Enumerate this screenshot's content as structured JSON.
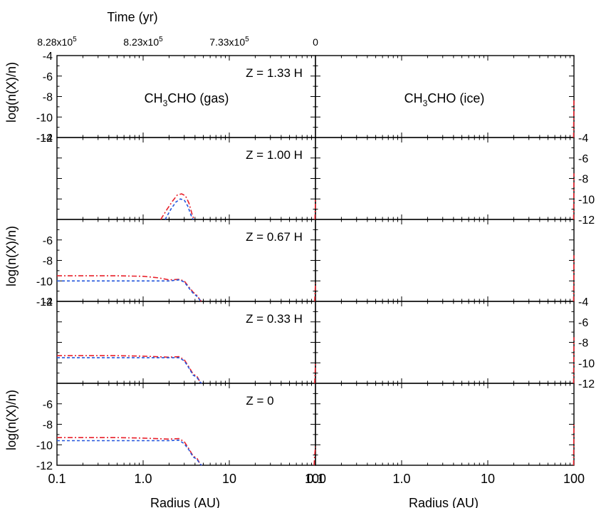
{
  "figure": {
    "time_axis_label": "Time (yr)",
    "time_ticks": [
      {
        "x": 0.1,
        "base": "8.28x10",
        "exp": "5"
      },
      {
        "x": 1.0,
        "base": "8.23x10",
        "exp": "5"
      },
      {
        "x": 10,
        "base": "7.33x10",
        "exp": "5"
      },
      {
        "x": 100,
        "base": "0",
        "exp": ""
      }
    ],
    "ylabel": "log(n(X)/n)",
    "xlabel": "Radius (AU)",
    "species_gas": {
      "pre": "CH",
      "sub": "3",
      "post": "CHO (gas)"
    },
    "species_ice": {
      "pre": "CH",
      "sub": "3",
      "post": "CHO (ice)"
    },
    "series_colors": {
      "red_dashdot": "#e8202a",
      "blue_dashed": "#2255dd"
    }
  },
  "chart_data": {
    "type": "line",
    "xscale": "log",
    "xlim": [
      0.1,
      100
    ],
    "ylim": [
      -12,
      -4
    ],
    "xtick_labels": [
      "0.1",
      "1.0",
      "10",
      "100"
    ],
    "ytick_labels": [
      "-4",
      "-6",
      "-8",
      "-10",
      "-12"
    ],
    "grid": false,
    "panels": [
      {
        "column": "gas",
        "label": "Z = 1.33 H",
        "series": [
          {
            "style": "red-dashdot",
            "points": []
          },
          {
            "style": "blue-dashed",
            "points": []
          }
        ]
      },
      {
        "column": "ice",
        "label": "",
        "series": [
          {
            "style": "red-dashdot",
            "points": [
              [
                99.0,
                -12
              ],
              [
                99.5,
                -10
              ],
              [
                100,
                -8.2
              ]
            ]
          },
          {
            "style": "blue-dashed",
            "points": []
          }
        ]
      },
      {
        "column": "gas",
        "label": "Z = 1.00 H",
        "series": [
          {
            "style": "red-dashdot",
            "points": [
              [
                1.6,
                -12
              ],
              [
                1.9,
                -11
              ],
              [
                2.2,
                -10.2
              ],
              [
                2.5,
                -9.6
              ],
              [
                2.8,
                -9.5
              ],
              [
                3.1,
                -9.7
              ],
              [
                3.4,
                -10.4
              ],
              [
                3.7,
                -11.5
              ],
              [
                3.9,
                -12
              ]
            ]
          },
          {
            "style": "blue-dashed",
            "points": [
              [
                1.8,
                -12
              ],
              [
                2.1,
                -11
              ],
              [
                2.4,
                -10.3
              ],
              [
                2.7,
                -10.0
              ],
              [
                3.0,
                -10.1
              ],
              [
                3.3,
                -10.7
              ],
              [
                3.6,
                -11.6
              ],
              [
                3.8,
                -12
              ]
            ]
          },
          {
            "style": "red-dashdot",
            "points": [
              [
                98.5,
                -12
              ],
              [
                99.5,
                -11
              ],
              [
                100,
                -10
              ]
            ]
          }
        ]
      },
      {
        "column": "ice",
        "label": "",
        "series": [
          {
            "style": "red-dashdot",
            "points": [
              [
                99.0,
                -12
              ],
              [
                99.5,
                -10
              ],
              [
                100,
                -7.5
              ]
            ]
          },
          {
            "style": "blue-dashed",
            "points": []
          }
        ]
      },
      {
        "column": "gas",
        "label": "Z = 0.67 H",
        "series": [
          {
            "style": "red-dashdot",
            "points": [
              [
                0.1,
                -9.5
              ],
              [
                0.5,
                -9.5
              ],
              [
                1.0,
                -9.55
              ],
              [
                1.5,
                -9.7
              ],
              [
                2.0,
                -9.9
              ],
              [
                2.6,
                -9.85
              ],
              [
                3.0,
                -10.0
              ],
              [
                3.4,
                -10.6
              ],
              [
                3.8,
                -11.1
              ],
              [
                4.2,
                -11.4
              ],
              [
                4.6,
                -11.9
              ],
              [
                4.8,
                -12
              ]
            ]
          },
          {
            "style": "blue-dashed",
            "points": [
              [
                0.1,
                -10.0
              ],
              [
                0.5,
                -10.0
              ],
              [
                1.0,
                -10.0
              ],
              [
                1.5,
                -10.0
              ],
              [
                2.0,
                -10.0
              ],
              [
                2.6,
                -9.9
              ],
              [
                3.0,
                -10.1
              ],
              [
                3.4,
                -10.7
              ],
              [
                3.8,
                -11.2
              ],
              [
                4.2,
                -11.5
              ],
              [
                4.6,
                -11.9
              ],
              [
                4.8,
                -12
              ]
            ]
          },
          {
            "style": "red-dashdot",
            "points": [
              [
                98.0,
                -12
              ],
              [
                99.0,
                -11
              ],
              [
                100,
                -10.2
              ]
            ]
          }
        ]
      },
      {
        "column": "ice",
        "label": "",
        "series": [
          {
            "style": "red-dashdot",
            "points": [
              [
                99.0,
                -12
              ],
              [
                99.5,
                -10
              ],
              [
                100,
                -7.5
              ]
            ]
          },
          {
            "style": "blue-dashed",
            "points": []
          }
        ]
      },
      {
        "column": "gas",
        "label": "Z = 0.33 H",
        "series": [
          {
            "style": "red-dashdot",
            "points": [
              [
                0.1,
                -9.3
              ],
              [
                0.5,
                -9.3
              ],
              [
                1.0,
                -9.35
              ],
              [
                2.0,
                -9.45
              ],
              [
                2.6,
                -9.4
              ],
              [
                3.0,
                -9.7
              ],
              [
                3.4,
                -10.4
              ],
              [
                3.8,
                -11.1
              ],
              [
                4.2,
                -11.3
              ],
              [
                4.6,
                -11.9
              ],
              [
                4.8,
                -12
              ]
            ]
          },
          {
            "style": "blue-dashed",
            "points": [
              [
                0.1,
                -9.5
              ],
              [
                0.5,
                -9.5
              ],
              [
                1.0,
                -9.5
              ],
              [
                2.0,
                -9.5
              ],
              [
                2.6,
                -9.5
              ],
              [
                3.0,
                -9.8
              ],
              [
                3.4,
                -10.5
              ],
              [
                3.8,
                -11.2
              ],
              [
                4.2,
                -11.4
              ],
              [
                4.6,
                -11.9
              ],
              [
                4.8,
                -12
              ]
            ]
          },
          {
            "style": "red-dashdot",
            "points": [
              [
                98.0,
                -12
              ],
              [
                99.0,
                -11
              ],
              [
                100,
                -10
              ]
            ]
          }
        ]
      },
      {
        "column": "ice",
        "label": "",
        "series": [
          {
            "style": "red-dashdot",
            "points": [
              [
                99.0,
                -12
              ],
              [
                99.5,
                -10
              ],
              [
                100,
                -7.5
              ]
            ]
          },
          {
            "style": "blue-dashed",
            "points": []
          }
        ]
      },
      {
        "column": "gas",
        "label": "Z = 0",
        "series": [
          {
            "style": "red-dashdot",
            "points": [
              [
                0.1,
                -9.3
              ],
              [
                0.5,
                -9.3
              ],
              [
                1.0,
                -9.35
              ],
              [
                2.0,
                -9.45
              ],
              [
                2.6,
                -9.4
              ],
              [
                3.0,
                -9.7
              ],
              [
                3.4,
                -10.4
              ],
              [
                3.8,
                -11.1
              ],
              [
                4.2,
                -11.3
              ],
              [
                4.6,
                -11.9
              ],
              [
                4.8,
                -12
              ]
            ]
          },
          {
            "style": "blue-dashed",
            "points": [
              [
                0.1,
                -9.6
              ],
              [
                0.5,
                -9.6
              ],
              [
                1.0,
                -9.6
              ],
              [
                2.0,
                -9.6
              ],
              [
                2.6,
                -9.55
              ],
              [
                3.0,
                -9.9
              ],
              [
                3.4,
                -10.5
              ],
              [
                3.8,
                -11.2
              ],
              [
                4.2,
                -11.4
              ],
              [
                4.6,
                -11.9
              ],
              [
                4.8,
                -12
              ]
            ]
          },
          {
            "style": "red-dashdot",
            "points": [
              [
                96.5,
                -12
              ],
              [
                98.0,
                -11
              ],
              [
                100,
                -10.2
              ]
            ]
          }
        ]
      },
      {
        "column": "ice",
        "label": "",
        "series": [
          {
            "style": "red-dashdot",
            "points": [
              [
                99.0,
                -12
              ],
              [
                99.5,
                -10
              ],
              [
                100,
                -8.0
              ]
            ]
          },
          {
            "style": "blue-dashed",
            "points": []
          }
        ]
      }
    ]
  }
}
